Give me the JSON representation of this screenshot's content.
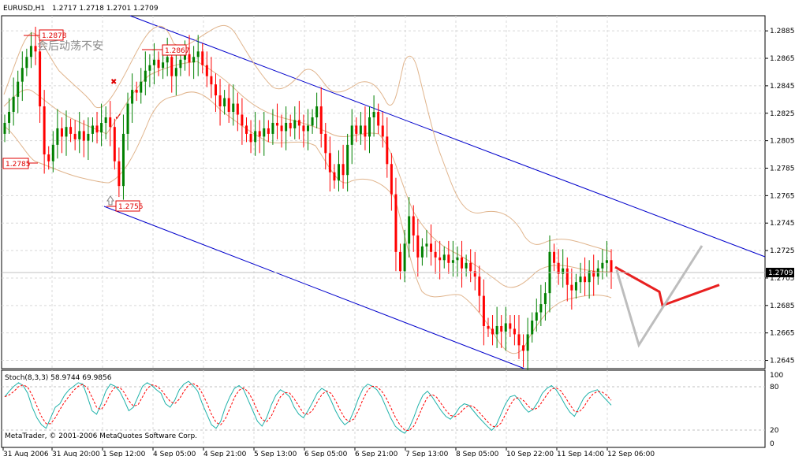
{
  "header": {
    "symbol": "EURUSD,H1",
    "ohlc": "1.2717 1.2718 1.2701 1.2709"
  },
  "annotation_text": "会后动荡不安",
  "indicator": {
    "label": "Stoch(8,3,3) 58.9744 69.9856",
    "levels": [
      "100",
      "80",
      "20",
      "0"
    ]
  },
  "copyright": "MetaTrader, © 2001-2006 MetaQuotes Software Corp.",
  "price_labels": {
    "high_1": "1.2878",
    "high_2": "1.2867",
    "low_left": "1.2785",
    "low_1": "1.2755",
    "current": "1.2709"
  },
  "colors": {
    "bull": "#008000",
    "bear": "#ff0000",
    "channel": "#0000cc",
    "bands": "#e0b48c",
    "stoch_main": "#20b2aa",
    "stoch_signal": "#ff0000",
    "projection_red": "#e82020",
    "projection_grey": "#bdbdbd",
    "price_box": "#000000"
  },
  "chart_data": {
    "type": "candlestick",
    "x_labels": [
      "31 Aug 2006",
      "31 Aug 20:00",
      "1 Sep 12:00",
      "4 Sep 05:00",
      "4 Sep 21:00",
      "5 Sep 13:00",
      "6 Sep 05:00",
      "6 Sep 21:00",
      "7 Sep 13:00",
      "8 Sep 05:00",
      "10 Sep 22:00",
      "11 Sep 14:00",
      "12 Sep 06:00"
    ],
    "y_ticks": [
      "1.2885",
      "1.2865",
      "1.2845",
      "1.2825",
      "1.2805",
      "1.2785",
      "1.2765",
      "1.2745",
      "1.2725",
      "1.2705",
      "1.2685",
      "1.2665",
      "1.2645"
    ],
    "ylim": [
      1.2639,
      1.2896
    ],
    "current_price": 1.2709,
    "closes": [
      1.2818,
      1.2826,
      1.2837,
      1.2848,
      1.2858,
      1.2866,
      1.2874,
      1.287,
      1.283,
      1.2795,
      1.279,
      1.2802,
      1.2814,
      1.2808,
      1.2815,
      1.281,
      1.2806,
      1.2812,
      1.2805,
      1.281,
      1.2816,
      1.2811,
      1.2818,
      1.2822,
      1.2815,
      1.279,
      1.2772,
      1.281,
      1.2832,
      1.2842,
      1.284,
      1.2848,
      1.2856,
      1.286,
      1.2864,
      1.2858,
      1.2862,
      1.2866,
      1.2852,
      1.2858,
      1.2864,
      1.2868,
      1.2862,
      1.2866,
      1.287,
      1.286,
      1.2852,
      1.2846,
      1.2838,
      1.283,
      1.2836,
      1.2826,
      1.2832,
      1.2824,
      1.2816,
      1.281,
      1.2804,
      1.2812,
      1.2808,
      1.2814,
      1.281,
      1.2818,
      1.2816,
      1.2812,
      1.2818,
      1.2814,
      1.282,
      1.2816,
      1.2812,
      1.2816,
      1.2822,
      1.283,
      1.281,
      1.2796,
      1.2782,
      1.2776,
      1.2788,
      1.278,
      1.2802,
      1.2816,
      1.281,
      1.2816,
      1.2808,
      1.2822,
      1.2826,
      1.2816,
      1.2808,
      1.2788,
      1.2766,
      1.2724,
      1.271,
      1.273,
      1.275,
      1.2736,
      1.272,
      1.2728,
      1.273,
      1.2724,
      1.272,
      1.2718,
      1.2722,
      1.2716,
      1.2718,
      1.272,
      1.2712,
      1.2716,
      1.271,
      1.2706,
      1.2692,
      1.267,
      1.2668,
      1.2664,
      1.267,
      1.2666,
      1.2672,
      1.2668,
      1.2664,
      1.2656,
      1.2652,
      1.2664,
      1.2674,
      1.268,
      1.2686,
      1.2694,
      1.2724,
      1.2716,
      1.2708,
      1.2712,
      1.27,
      1.2696,
      1.2702,
      1.2706,
      1.2702,
      1.271,
      1.2706,
      1.2712,
      1.2716,
      1.2718,
      1.2709
    ],
    "projection_red": [
      [
        1.2713,
        1.2709
      ],
      [
        1.2695,
        1.2685
      ],
      [
        1.2697,
        1.27
      ]
    ],
    "stoch_main": [
      70,
      78,
      85,
      90,
      86,
      75,
      55,
      40,
      30,
      25,
      40,
      55,
      60,
      72,
      80,
      85,
      90,
      88,
      70,
      50,
      45,
      60,
      78,
      88,
      85,
      78,
      65,
      50,
      55,
      70,
      85,
      90,
      86,
      80,
      75,
      60,
      55,
      65,
      80,
      88,
      92,
      86,
      78,
      60,
      45,
      30,
      25,
      35,
      55,
      70,
      82,
      86,
      80,
      65,
      50,
      35,
      28,
      40,
      58,
      72,
      80,
      76,
      70,
      55,
      45,
      40,
      50,
      62,
      75,
      82,
      78,
      65,
      50,
      38,
      30,
      35,
      50,
      68,
      82,
      88,
      85,
      80,
      70,
      55,
      40,
      28,
      22,
      18,
      25,
      40,
      58,
      72,
      78,
      70,
      60,
      50,
      42,
      38,
      45,
      55,
      60,
      58,
      50,
      42,
      35,
      28,
      22,
      30,
      45,
      60,
      70,
      72,
      65,
      55,
      48,
      52,
      62,
      75,
      82,
      86,
      80,
      70,
      58,
      48,
      42,
      55,
      68,
      75,
      78,
      80,
      72,
      65,
      58
    ]
  }
}
